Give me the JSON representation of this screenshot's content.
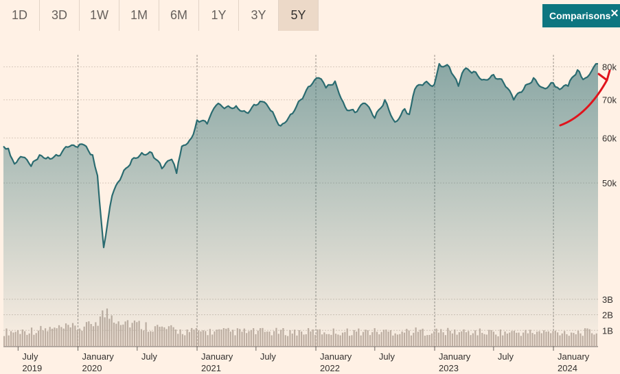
{
  "range_buttons": [
    "1D",
    "3D",
    "1W",
    "1M",
    "6M",
    "1Y",
    "3Y",
    "5Y"
  ],
  "active_range": "5Y",
  "comparisons_label": "Comparisons",
  "colors": {
    "line": "#2a6b70",
    "volume": "#c2b0a3",
    "accent": "#0d7680",
    "annotation": "#e0141c"
  },
  "chart_data": {
    "type": "line",
    "y_scale": "log",
    "ylim": [
      32000,
      84000
    ],
    "yticks": [
      {
        "value": 80000,
        "label": "80k"
      },
      {
        "value": 70000,
        "label": "70k"
      },
      {
        "value": 60000,
        "label": "60k"
      },
      {
        "value": 50000,
        "label": "50k"
      }
    ],
    "xlim": [
      "2019-05-17",
      "2024-05-17"
    ],
    "x_labels": [
      {
        "date": "2019-07-01",
        "month": "July",
        "year": "2019"
      },
      {
        "date": "2020-01-01",
        "month": "January",
        "year": "2020"
      },
      {
        "date": "2020-07-01",
        "month": "July",
        "year": ""
      },
      {
        "date": "2021-01-01",
        "month": "January",
        "year": "2021"
      },
      {
        "date": "2021-07-01",
        "month": "July",
        "year": ""
      },
      {
        "date": "2022-01-01",
        "month": "January",
        "year": "2022"
      },
      {
        "date": "2022-07-01",
        "month": "July",
        "year": ""
      },
      {
        "date": "2023-01-01",
        "month": "January",
        "year": "2023"
      },
      {
        "date": "2023-07-01",
        "month": "July",
        "year": ""
      },
      {
        "date": "2024-01-01",
        "month": "January",
        "year": "2024"
      }
    ],
    "year_dividers": [
      "2020-01-01",
      "2021-01-01",
      "2022-01-01",
      "2023-01-01",
      "2024-01-01"
    ],
    "series": [
      {
        "x": [
          "2019-05-17",
          "2019-06-01",
          "2019-06-20",
          "2019-07-15",
          "2019-08-10",
          "2019-09-05",
          "2019-10-01",
          "2019-11-01",
          "2019-12-01",
          "2019-12-31",
          "2020-01-20",
          "2020-02-15",
          "2020-03-01",
          "2020-03-20",
          "2020-04-15",
          "2020-05-15",
          "2020-06-15",
          "2020-07-15",
          "2020-08-15",
          "2020-09-15",
          "2020-10-15",
          "2020-10-30",
          "2020-11-15",
          "2020-12-15",
          "2021-01-01",
          "2021-02-01",
          "2021-03-01",
          "2021-04-01",
          "2021-05-01",
          "2021-06-01",
          "2021-07-01",
          "2021-07-20",
          "2021-08-15",
          "2021-09-15",
          "2021-10-15",
          "2021-11-15",
          "2021-12-15",
          "2022-01-10",
          "2022-02-01",
          "2022-03-01",
          "2022-04-01",
          "2022-05-01",
          "2022-06-01",
          "2022-07-01",
          "2022-08-01",
          "2022-09-01",
          "2022-10-01",
          "2022-10-15",
          "2022-11-01",
          "2022-12-01",
          "2022-12-31",
          "2023-01-15",
          "2023-02-15",
          "2023-03-15",
          "2023-04-01",
          "2023-05-01",
          "2023-06-01",
          "2023-07-01",
          "2023-08-01",
          "2023-09-01",
          "2023-10-01",
          "2023-11-01",
          "2023-12-01",
          "2023-12-31",
          "2024-01-20",
          "2024-02-15",
          "2024-03-15",
          "2024-04-01",
          "2024-05-17"
        ],
        "values": [
          58000,
          57500,
          54000,
          55500,
          53500,
          56000,
          55500,
          55800,
          57800,
          57800,
          58300,
          56000,
          51500,
          38500,
          47500,
          51500,
          55000,
          56500,
          56500,
          53000,
          55000,
          52000,
          58000,
          60000,
          64500,
          63500,
          68500,
          68000,
          68300,
          66500,
          68500,
          69500,
          67000,
          63000,
          66000,
          70000,
          74000,
          76500,
          73500,
          75500,
          68000,
          66500,
          69000,
          65000,
          70000,
          64000,
          67500,
          66000,
          73000,
          75000,
          74500,
          81000,
          80000,
          74000,
          79000,
          78500,
          76000,
          77500,
          75000,
          70000,
          73000,
          76500,
          73500,
          75000,
          73000,
          74000,
          79000,
          76000,
          81000
        ]
      }
    ],
    "volume_ticks": [
      {
        "value": 3,
        "label": "3B"
      },
      {
        "value": 2,
        "label": "2B"
      },
      {
        "value": 1,
        "label": "1B"
      }
    ],
    "volume_max": 3.3,
    "volume_levels": [
      [
        0.0,
        1.15
      ],
      [
        0.14,
        1.55
      ],
      [
        0.17,
        2.7
      ],
      [
        0.22,
        1.8
      ],
      [
        0.3,
        1.2
      ],
      [
        0.5,
        1.15
      ],
      [
        0.7,
        1.2
      ],
      [
        0.85,
        1.1
      ],
      [
        1.0,
        1.15
      ]
    ]
  }
}
